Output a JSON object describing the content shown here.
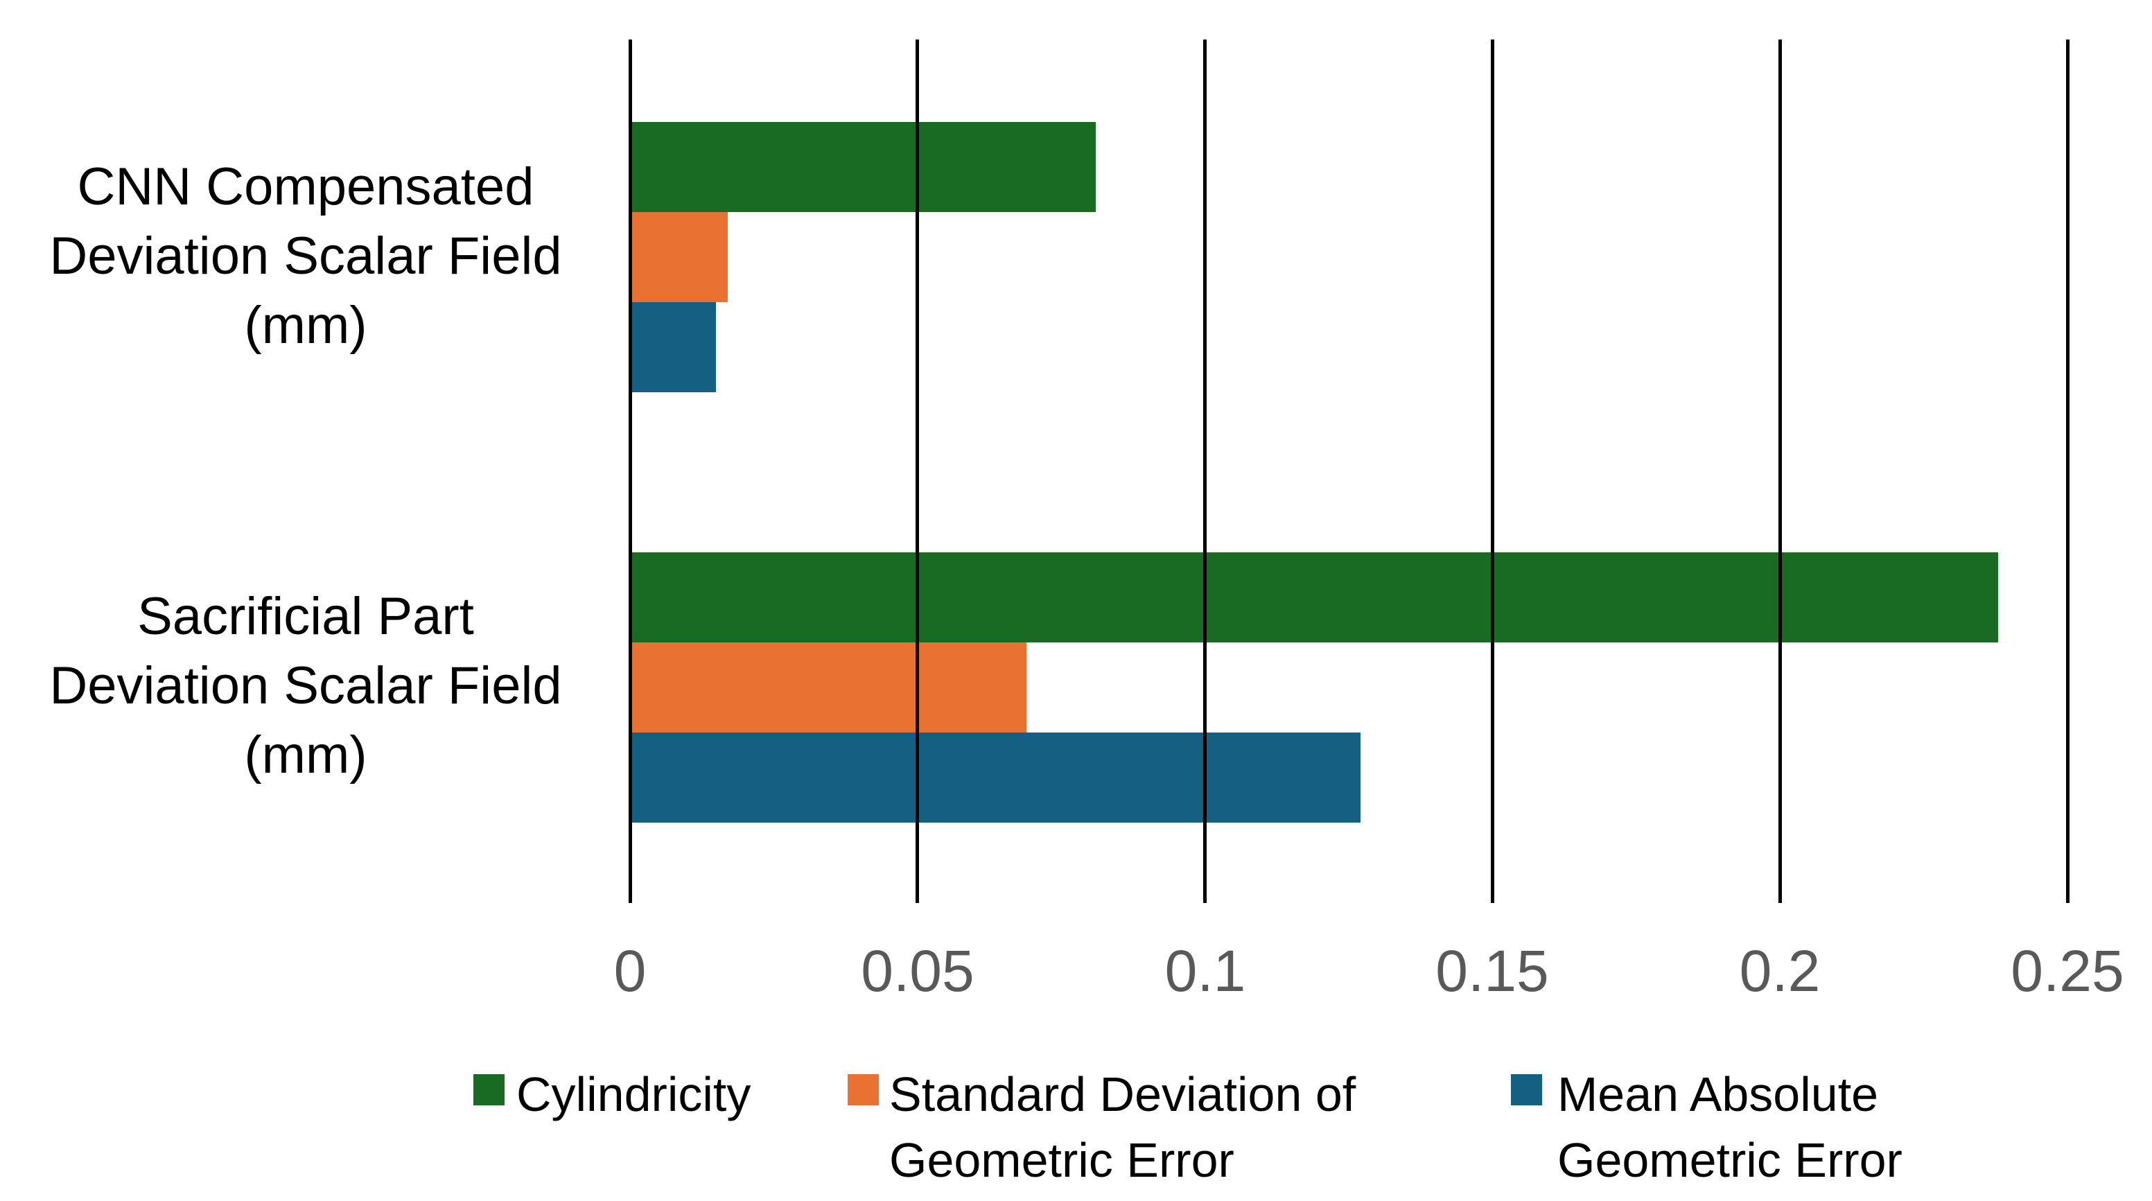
{
  "chart_data": {
    "type": "bar",
    "orientation": "horizontal",
    "title": "",
    "xlabel": "",
    "ylabel": "",
    "xlim": [
      0,
      0.25
    ],
    "grid": true,
    "gridline_color": "#000000",
    "tick_label_color": "#595959",
    "text_color": "#000000",
    "background_color": "#FFFFFF",
    "categories": [
      "CNN Compensated Deviation Scalar Field (mm)",
      "Sacrificial Part Deviation Scalar Field (mm)"
    ],
    "category_lines": [
      [
        "CNN Compensated",
        "Deviation Scalar Field",
        "(mm)"
      ],
      [
        "Sacrificial Part",
        "Deviation Scalar Field",
        "(mm)"
      ]
    ],
    "series": [
      {
        "name": "Cylindricity",
        "color": "#196B24",
        "values": [
          0.081,
          0.238
        ]
      },
      {
        "name": "Standard Deviation of Geometric Error",
        "color": "#E97132",
        "values": [
          0.017,
          0.069
        ]
      },
      {
        "name": "Mean Absolute Geometric Error",
        "color": "#156082",
        "values": [
          0.015,
          0.127
        ]
      }
    ],
    "x_ticks": [
      0,
      0.05,
      0.1,
      0.15,
      0.2,
      0.25
    ],
    "x_tick_labels": [
      "0",
      "0.05",
      "0.1",
      "0.15",
      "0.2",
      "0.25"
    ],
    "legend_position": "bottom",
    "legend": [
      {
        "color": "#196B24",
        "label_lines": [
          "Cylindricity"
        ]
      },
      {
        "color": "#E97132",
        "label_lines": [
          "Standard Deviation of",
          "Geometric Error"
        ]
      },
      {
        "color": "#156082",
        "label_lines": [
          "Mean Absolute",
          "Geometric Error"
        ]
      }
    ]
  }
}
